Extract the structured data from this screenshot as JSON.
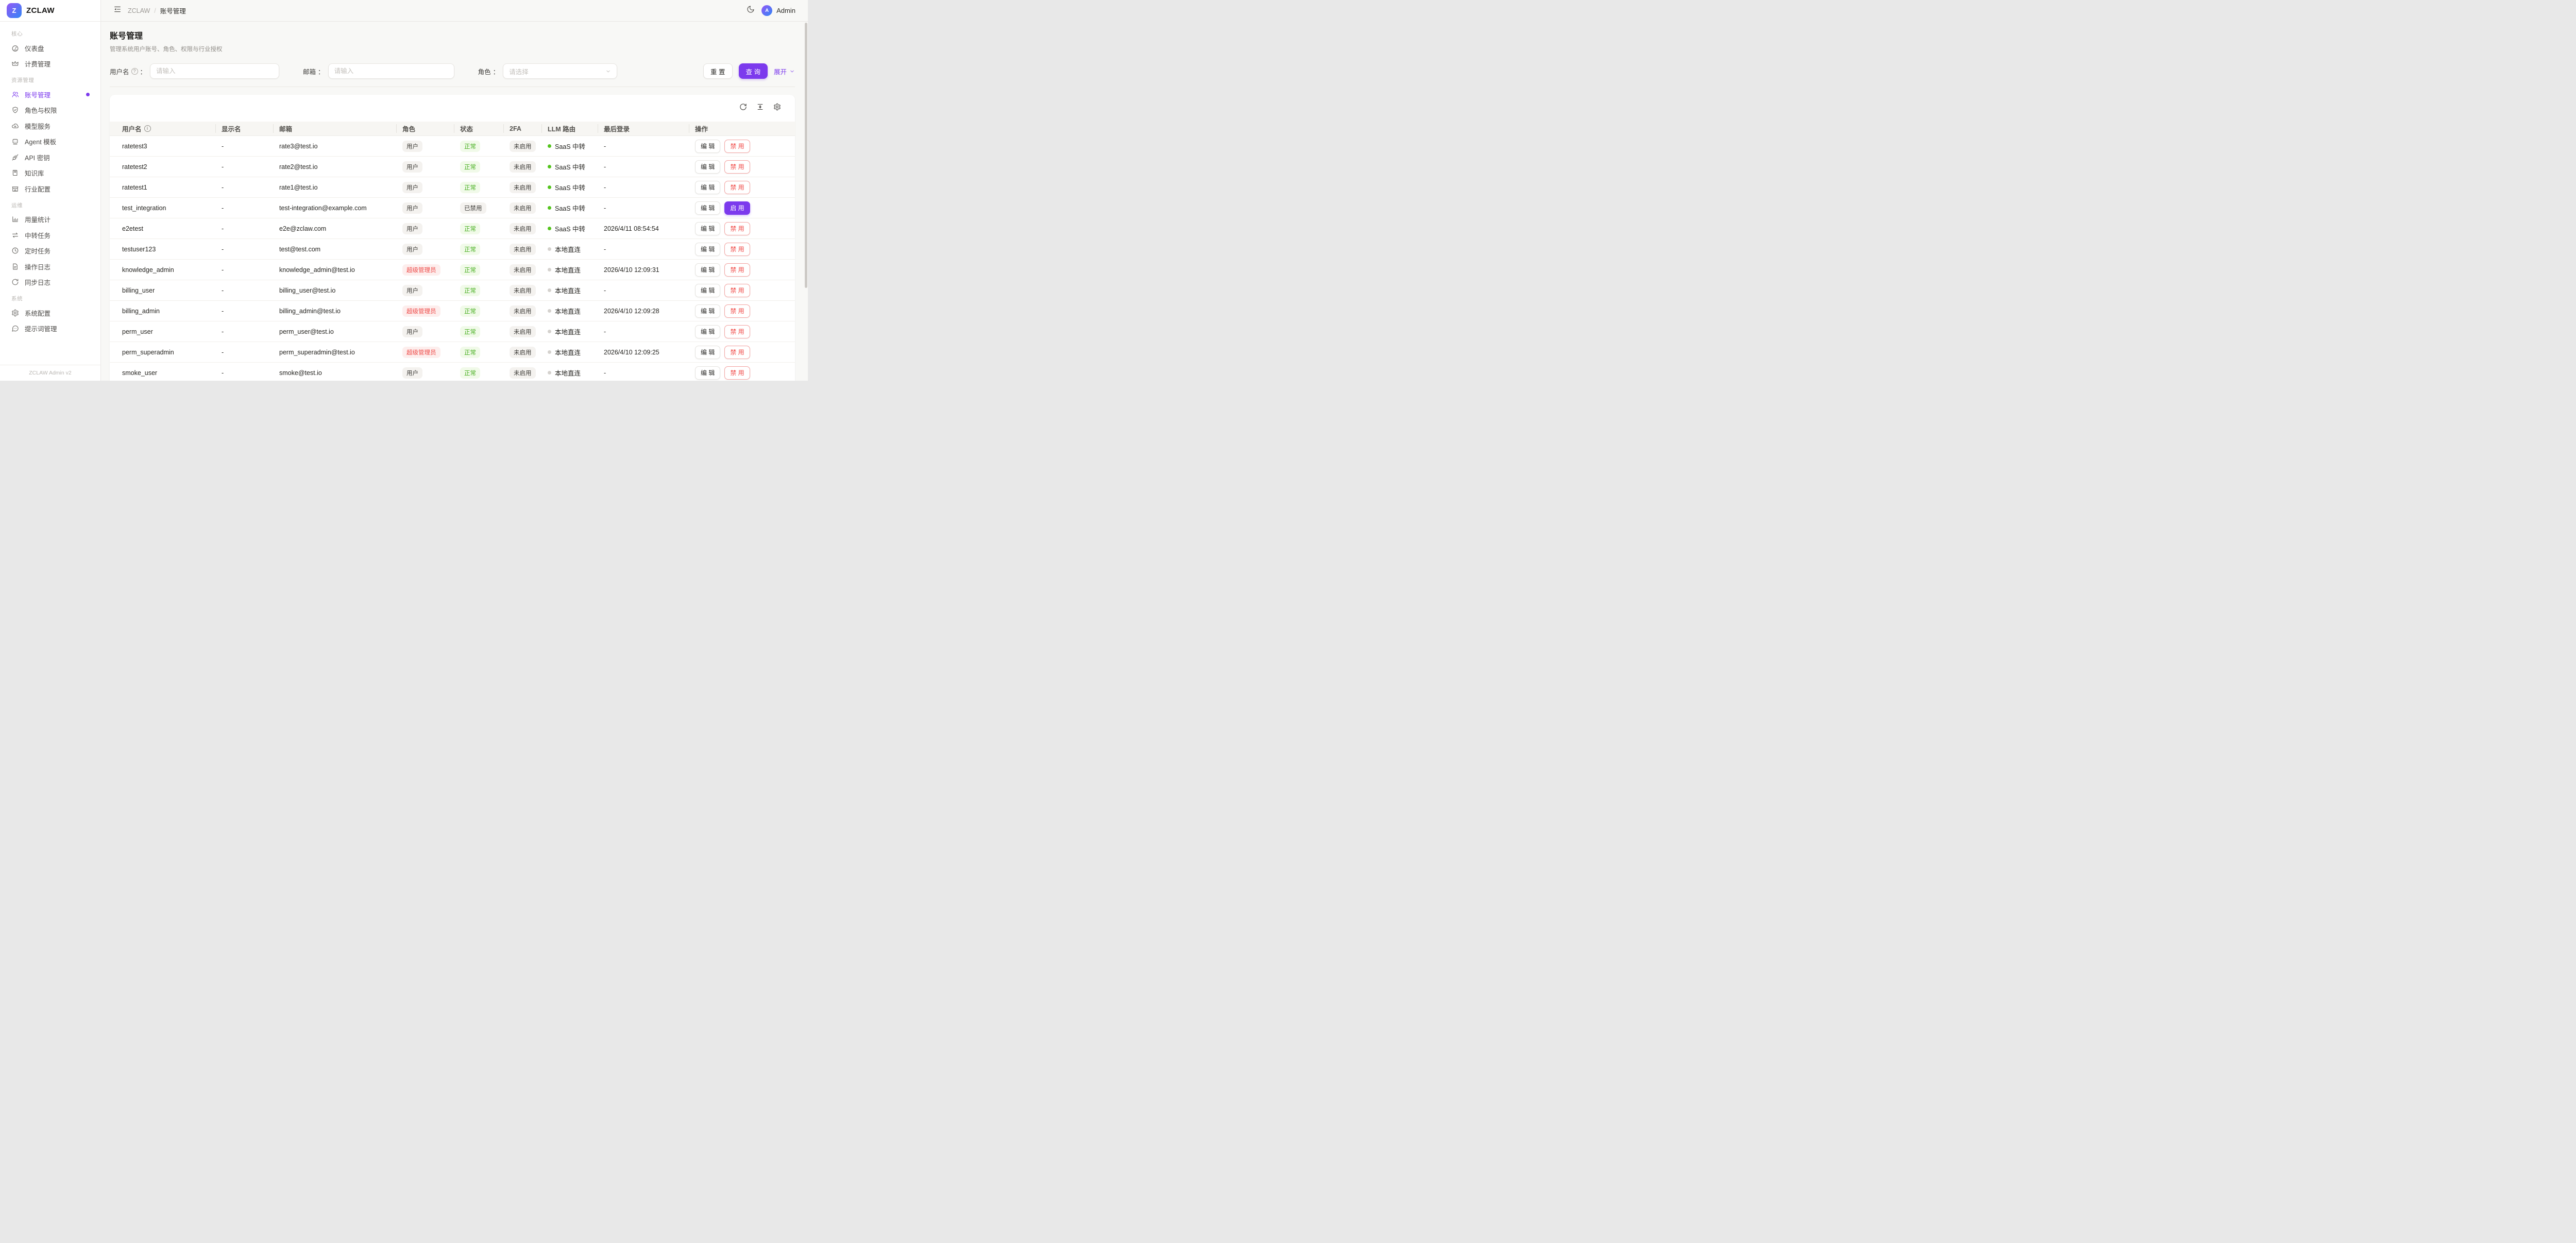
{
  "brand": {
    "name": "ZCLAW",
    "logo_letter": "Z",
    "footer": "ZCLAW Admin v2"
  },
  "header": {
    "breadcrumb": [
      "ZCLAW",
      "账号管理"
    ],
    "breadcrumb_separator": "/",
    "user": "Admin",
    "avatar_letter": "A"
  },
  "page": {
    "title": "账号管理",
    "subtitle": "管理系统用户账号、角色、权限与行业授权"
  },
  "filters": {
    "colon": "：",
    "help_char": "?",
    "username_label": "用户名",
    "email_label": "邮箱",
    "role_label": "角色",
    "input_placeholder": "请输入",
    "select_placeholder": "请选择",
    "reset": "重 置",
    "search": "查 询",
    "expand": "展开"
  },
  "colors": {
    "accent": "#7c3aed",
    "success": "#47af20",
    "danger": "#ee4a48",
    "saas_dot": "#54c41d",
    "local_dot": "#d5d2ce"
  },
  "sidebar": {
    "sections": [
      {
        "label": "核心",
        "items": [
          {
            "id": "dashboard",
            "icon": "gauge-icon",
            "label": "仪表盘"
          },
          {
            "id": "billing",
            "icon": "crown-icon",
            "label": "计费管理"
          }
        ]
      },
      {
        "label": "资源管理",
        "items": [
          {
            "id": "accounts",
            "icon": "users-icon",
            "label": "账号管理",
            "active": true,
            "dot": true
          },
          {
            "id": "roles",
            "icon": "shield-check-icon",
            "label": "角色与权限"
          },
          {
            "id": "models",
            "icon": "cloud-icon",
            "label": "模型服务"
          },
          {
            "id": "agent-templates",
            "icon": "robot-icon",
            "label": "Agent 模板"
          },
          {
            "id": "api-keys",
            "icon": "plug-icon",
            "label": "API 密钥"
          },
          {
            "id": "knowledge-base",
            "icon": "book-icon",
            "label": "知识库"
          },
          {
            "id": "industry-config",
            "icon": "store-icon",
            "label": "行业配置"
          }
        ]
      },
      {
        "label": "运维",
        "items": [
          {
            "id": "usage-stats",
            "icon": "bar-chart-icon",
            "label": "用量统计"
          },
          {
            "id": "relay-tasks",
            "icon": "transfer-icon",
            "label": "中转任务"
          },
          {
            "id": "scheduled-tasks",
            "icon": "clock-icon",
            "label": "定时任务"
          },
          {
            "id": "operation-logs",
            "icon": "file-text-icon",
            "label": "操作日志"
          },
          {
            "id": "sync-logs",
            "icon": "sync-icon",
            "label": "同步日志"
          }
        ]
      },
      {
        "label": "系统",
        "items": [
          {
            "id": "system-config",
            "icon": "gear-icon",
            "label": "系统配置"
          },
          {
            "id": "prompt-management",
            "icon": "chat-icon",
            "label": "提示词管理"
          }
        ]
      }
    ]
  },
  "table": {
    "info_char": "i",
    "columns": [
      {
        "key": "username",
        "label": "用户名",
        "info": true
      },
      {
        "key": "display_name",
        "label": "显示名"
      },
      {
        "key": "email",
        "label": "邮箱"
      },
      {
        "key": "role",
        "label": "角色"
      },
      {
        "key": "status",
        "label": "状态"
      },
      {
        "key": "twofa",
        "label": "2FA"
      },
      {
        "key": "route",
        "label": "LLM 路由"
      },
      {
        "key": "last_login",
        "label": "最后登录"
      },
      {
        "key": "ops",
        "label": "操作"
      }
    ],
    "rows": [
      {
        "username": "ratetest3",
        "display_name": "-",
        "email": "rate3@test.io",
        "role": "用户",
        "role_variant": "default",
        "status": "正常",
        "status_variant": "success",
        "twofa": "未启用",
        "route": "SaaS 中转",
        "route_variant": "saas",
        "last_login": "-",
        "actions": [
          {
            "name": "edit",
            "label": "编 辑",
            "variant": "default"
          },
          {
            "name": "disable",
            "label": "禁 用",
            "variant": "danger"
          }
        ]
      },
      {
        "username": "ratetest2",
        "display_name": "-",
        "email": "rate2@test.io",
        "role": "用户",
        "role_variant": "default",
        "status": "正常",
        "status_variant": "success",
        "twofa": "未启用",
        "route": "SaaS 中转",
        "route_variant": "saas",
        "last_login": "-",
        "actions": [
          {
            "name": "edit",
            "label": "编 辑",
            "variant": "default"
          },
          {
            "name": "disable",
            "label": "禁 用",
            "variant": "danger"
          }
        ]
      },
      {
        "username": "ratetest1",
        "display_name": "-",
        "email": "rate1@test.io",
        "role": "用户",
        "role_variant": "default",
        "status": "正常",
        "status_variant": "success",
        "twofa": "未启用",
        "route": "SaaS 中转",
        "route_variant": "saas",
        "last_login": "-",
        "actions": [
          {
            "name": "edit",
            "label": "编 辑",
            "variant": "default"
          },
          {
            "name": "disable",
            "label": "禁 用",
            "variant": "danger"
          }
        ]
      },
      {
        "username": "test_integration",
        "display_name": "-",
        "email": "test-integration@example.com",
        "role": "用户",
        "role_variant": "default",
        "status": "已禁用",
        "status_variant": "default",
        "twofa": "未启用",
        "route": "SaaS 中转",
        "route_variant": "saas",
        "last_login": "-",
        "actions": [
          {
            "name": "edit",
            "label": "编 辑",
            "variant": "default"
          },
          {
            "name": "enable",
            "label": "启 用",
            "variant": "primary"
          }
        ]
      },
      {
        "username": "e2etest",
        "display_name": "-",
        "email": "e2e@zclaw.com",
        "role": "用户",
        "role_variant": "default",
        "status": "正常",
        "status_variant": "success",
        "twofa": "未启用",
        "route": "SaaS 中转",
        "route_variant": "saas",
        "last_login": "2026/4/11 08:54:54",
        "actions": [
          {
            "name": "edit",
            "label": "编 辑",
            "variant": "default"
          },
          {
            "name": "disable",
            "label": "禁 用",
            "variant": "danger"
          }
        ]
      },
      {
        "username": "testuser123",
        "display_name": "-",
        "email": "test@test.com",
        "role": "用户",
        "role_variant": "default",
        "status": "正常",
        "status_variant": "success",
        "twofa": "未启用",
        "route": "本地直连",
        "route_variant": "local",
        "last_login": "-",
        "actions": [
          {
            "name": "edit",
            "label": "编 辑",
            "variant": "default"
          },
          {
            "name": "disable",
            "label": "禁 用",
            "variant": "danger"
          }
        ]
      },
      {
        "username": "knowledge_admin",
        "display_name": "-",
        "email": "knowledge_admin@test.io",
        "role": "超级管理员",
        "role_variant": "danger",
        "status": "正常",
        "status_variant": "success",
        "twofa": "未启用",
        "route": "本地直连",
        "route_variant": "local",
        "last_login": "2026/4/10 12:09:31",
        "actions": [
          {
            "name": "edit",
            "label": "编 辑",
            "variant": "default"
          },
          {
            "name": "disable",
            "label": "禁 用",
            "variant": "danger"
          }
        ]
      },
      {
        "username": "billing_user",
        "display_name": "-",
        "email": "billing_user@test.io",
        "role": "用户",
        "role_variant": "default",
        "status": "正常",
        "status_variant": "success",
        "twofa": "未启用",
        "route": "本地直连",
        "route_variant": "local",
        "last_login": "-",
        "actions": [
          {
            "name": "edit",
            "label": "编 辑",
            "variant": "default"
          },
          {
            "name": "disable",
            "label": "禁 用",
            "variant": "danger"
          }
        ]
      },
      {
        "username": "billing_admin",
        "display_name": "-",
        "email": "billing_admin@test.io",
        "role": "超级管理员",
        "role_variant": "danger",
        "status": "正常",
        "status_variant": "success",
        "twofa": "未启用",
        "route": "本地直连",
        "route_variant": "local",
        "last_login": "2026/4/10 12:09:28",
        "actions": [
          {
            "name": "edit",
            "label": "编 辑",
            "variant": "default"
          },
          {
            "name": "disable",
            "label": "禁 用",
            "variant": "danger"
          }
        ]
      },
      {
        "username": "perm_user",
        "display_name": "-",
        "email": "perm_user@test.io",
        "role": "用户",
        "role_variant": "default",
        "status": "正常",
        "status_variant": "success",
        "twofa": "未启用",
        "route": "本地直连",
        "route_variant": "local",
        "last_login": "-",
        "actions": [
          {
            "name": "edit",
            "label": "编 辑",
            "variant": "default"
          },
          {
            "name": "disable",
            "label": "禁 用",
            "variant": "danger"
          }
        ]
      },
      {
        "username": "perm_superadmin",
        "display_name": "-",
        "email": "perm_superadmin@test.io",
        "role": "超级管理员",
        "role_variant": "danger",
        "status": "正常",
        "status_variant": "success",
        "twofa": "未启用",
        "route": "本地直连",
        "route_variant": "local",
        "last_login": "2026/4/10 12:09:25",
        "actions": [
          {
            "name": "edit",
            "label": "编 辑",
            "variant": "default"
          },
          {
            "name": "disable",
            "label": "禁 用",
            "variant": "danger"
          }
        ]
      },
      {
        "username": "smoke_user",
        "display_name": "-",
        "email": "smoke@test.io",
        "role": "用户",
        "role_variant": "default",
        "status": "正常",
        "status_variant": "success",
        "twofa": "未启用",
        "route": "本地直连",
        "route_variant": "local",
        "last_login": "-",
        "actions": [
          {
            "name": "edit",
            "label": "编 辑",
            "variant": "default"
          },
          {
            "name": "disable",
            "label": "禁 用",
            "variant": "danger"
          }
        ]
      }
    ]
  }
}
